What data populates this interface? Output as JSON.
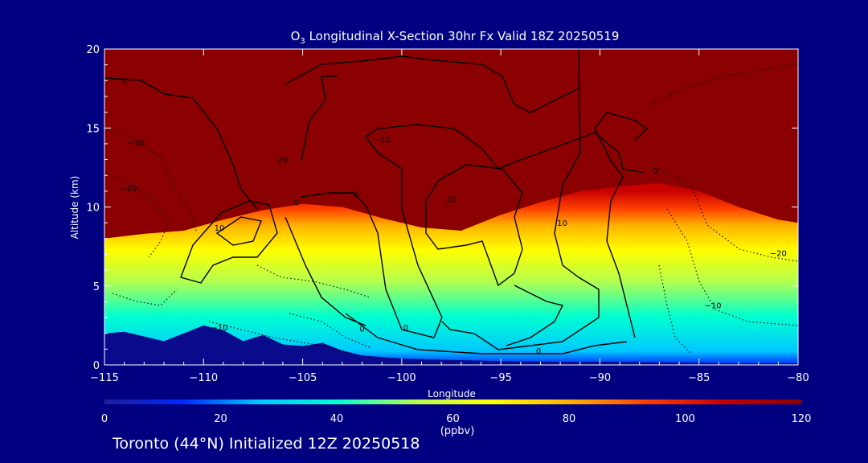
{
  "chart_data": {
    "type": "heatmap",
    "title_prefix": "O",
    "title_subscript": "3",
    "title_rest": " Longitudinal X-Section 30hr  Fx Valid 18Z 20250519",
    "xlabel": "Longitude",
    "ylabel": "Altitude (km)",
    "xlim": [
      -115,
      -80
    ],
    "ylim": [
      0,
      20
    ],
    "x_ticks": [
      -115,
      -110,
      -105,
      -100,
      -95,
      -90,
      -85,
      -80
    ],
    "x_tick_labels": [
      "−115",
      "−110",
      "−105",
      "−100",
      "−95",
      "−90",
      "−85",
      "−80"
    ],
    "y_ticks": [
      0,
      5,
      10,
      15,
      20
    ],
    "y_tick_labels": [
      "0",
      "5",
      "10",
      "15",
      "20"
    ],
    "colorbar": {
      "min": 0,
      "max": 120,
      "ticks": [
        0,
        20,
        40,
        60,
        80,
        100,
        120
      ],
      "tick_labels": [
        "0",
        "20",
        "40",
        "60",
        "80",
        "100",
        "120"
      ],
      "unit_label": "(ppbv)",
      "colors": [
        "#1e1e96",
        "#0028ff",
        "#00c8ff",
        "#00ffd0",
        "#b4ff50",
        "#ffff00",
        "#ffb400",
        "#ff4000",
        "#c80000",
        "#8b0000"
      ]
    },
    "ozone_boundary_km": [
      [
        -115,
        8.0
      ],
      [
        -113,
        8.3
      ],
      [
        -111,
        8.5
      ],
      [
        -109,
        9.2
      ],
      [
        -107,
        9.8
      ],
      [
        -105,
        10.2
      ],
      [
        -103,
        10.0
      ],
      [
        -101,
        9.3
      ],
      [
        -99,
        8.7
      ],
      [
        -97,
        8.5
      ],
      [
        -95,
        9.5
      ],
      [
        -93,
        10.3
      ],
      [
        -91,
        11.0
      ],
      [
        -89,
        11.3
      ],
      [
        -87,
        11.5
      ],
      [
        -85,
        11.0
      ],
      [
        -83,
        10.0
      ],
      [
        -81,
        9.2
      ],
      [
        -80,
        9.0
      ]
    ],
    "terrain_km": [
      [
        -115,
        2.0
      ],
      [
        -114,
        2.1
      ],
      [
        -113,
        1.8
      ],
      [
        -112,
        1.5
      ],
      [
        -111,
        2.0
      ],
      [
        -110,
        2.5
      ],
      [
        -109,
        2.2
      ],
      [
        -108,
        1.5
      ],
      [
        -107,
        1.9
      ],
      [
        -106,
        1.3
      ],
      [
        -105,
        1.2
      ],
      [
        -104,
        1.4
      ],
      [
        -103,
        0.9
      ],
      [
        -102,
        0.6
      ],
      [
        -100,
        0.4
      ],
      [
        -97,
        0.3
      ],
      [
        -95,
        0.25
      ],
      [
        -92,
        0.2
      ],
      [
        -89,
        0.2
      ],
      [
        -86,
        0.15
      ],
      [
        -83,
        0.1
      ],
      [
        -80,
        0.1
      ]
    ],
    "contour_labels": [
      {
        "text": "0",
        "lon": -114.0,
        "alt": 17.8
      },
      {
        "text": "−10",
        "lon": -113.4,
        "alt": 13.9
      },
      {
        "text": "−20",
        "lon": -113.8,
        "alt": 11.0
      },
      {
        "text": "10",
        "lon": -109.2,
        "alt": 8.5
      },
      {
        "text": "0",
        "lon": -105.3,
        "alt": 10.1
      },
      {
        "text": "20",
        "lon": -106.0,
        "alt": 12.8
      },
      {
        "text": "0",
        "lon": -102.3,
        "alt": 10.6
      },
      {
        "text": "−10",
        "lon": -101.0,
        "alt": 14.1
      },
      {
        "text": "20",
        "lon": -97.5,
        "alt": 10.3
      },
      {
        "text": "10",
        "lon": -91.9,
        "alt": 8.8
      },
      {
        "text": "0",
        "lon": -87.2,
        "alt": 12.1
      },
      {
        "text": "−10",
        "lon": -109.2,
        "alt": 2.2
      },
      {
        "text": "0",
        "lon": -102.0,
        "alt": 2.1
      },
      {
        "text": "0",
        "lon": -99.8,
        "alt": 2.2
      },
      {
        "text": "0",
        "lon": -93.1,
        "alt": 0.7
      },
      {
        "text": "−10",
        "lon": -84.3,
        "alt": 3.6
      },
      {
        "text": "−20",
        "lon": -81.0,
        "alt": 6.9
      }
    ]
  },
  "footer": {
    "text": "Toronto (44°N) Initialized 12Z 20250518"
  }
}
